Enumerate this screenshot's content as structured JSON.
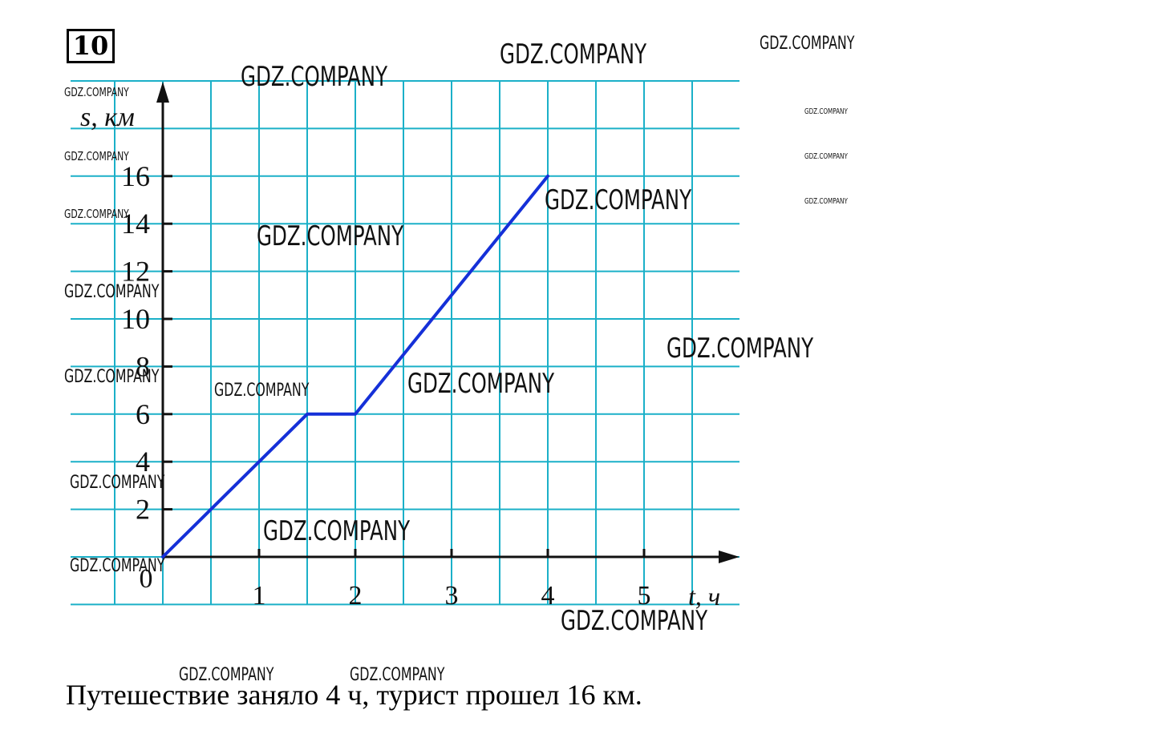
{
  "task_number": "10",
  "answer_text": "Путешествие заняло 4 ч, турист прошел 16 км.",
  "watermark_text": "GDZ.COMPANY",
  "colors": {
    "grid": "#1bb0c8",
    "line": "#1530d8",
    "axes": "#111111"
  },
  "chart_data": {
    "type": "line",
    "title": "",
    "xlabel": "t, ч",
    "ylabel": "s, км",
    "xlim": [
      0,
      6
    ],
    "ylim": [
      0,
      20
    ],
    "grid": true,
    "x_ticks": [
      {
        "value": 1,
        "label": "1"
      },
      {
        "value": 2,
        "label": "2"
      },
      {
        "value": 3,
        "label": "3"
      },
      {
        "value": 4,
        "label": "4"
      },
      {
        "value": 5,
        "label": "5"
      }
    ],
    "y_ticks": [
      {
        "value": 2,
        "label": "2"
      },
      {
        "value": 4,
        "label": "4"
      },
      {
        "value": 6,
        "label": "6"
      },
      {
        "value": 8,
        "label": "8"
      },
      {
        "value": 10,
        "label": "10"
      },
      {
        "value": 12,
        "label": "12"
      },
      {
        "value": 14,
        "label": "14"
      },
      {
        "value": 16,
        "label": "16"
      }
    ],
    "origin_label": "0",
    "series": [
      {
        "x": [
          0,
          1.5,
          2,
          4
        ],
        "y": [
          0,
          6,
          6,
          16
        ]
      }
    ]
  }
}
